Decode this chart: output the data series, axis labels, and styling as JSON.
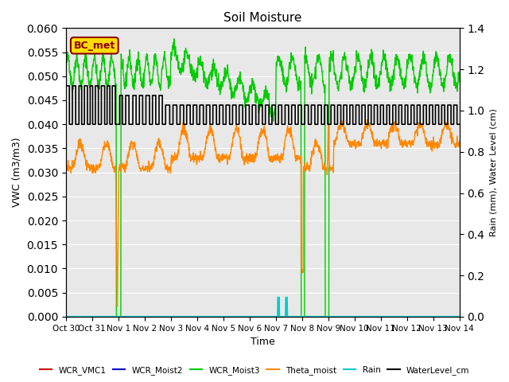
{
  "title": "Soil Moisture",
  "xlabel": "Time",
  "ylabel_left": "VWC (m3/m3)",
  "ylabel_right": "Rain (mm), Water Level (cm)",
  "ylim_left": [
    0,
    0.06
  ],
  "ylim_right": [
    0,
    1.4
  ],
  "bg_color": "#e8e8e8",
  "annotation_text": "BC_met",
  "annotation_box_color": "#ffdd00",
  "annotation_text_color": "#8b0000",
  "legend_entries": [
    "WCR_VMC1",
    "WCR_Moist2",
    "WCR_Moist3",
    "Theta_moist",
    "Rain",
    "WaterLevel_cm"
  ],
  "legend_colors": [
    "#cc0000",
    "#0000cc",
    "#00cc00",
    "#ff8800",
    "#00cccc",
    "#000000"
  ],
  "tick_labels": [
    "Oct 30",
    "Oct 31",
    "Nov 1",
    "Nov 2",
    "Nov 3",
    "Nov 4",
    "Nov 5",
    "Nov 6",
    "Nov 7",
    "Nov 8",
    "Nov 9",
    "Nov 10",
    "Nov 11",
    "Nov 12",
    "Nov 13",
    "Nov 14"
  ]
}
